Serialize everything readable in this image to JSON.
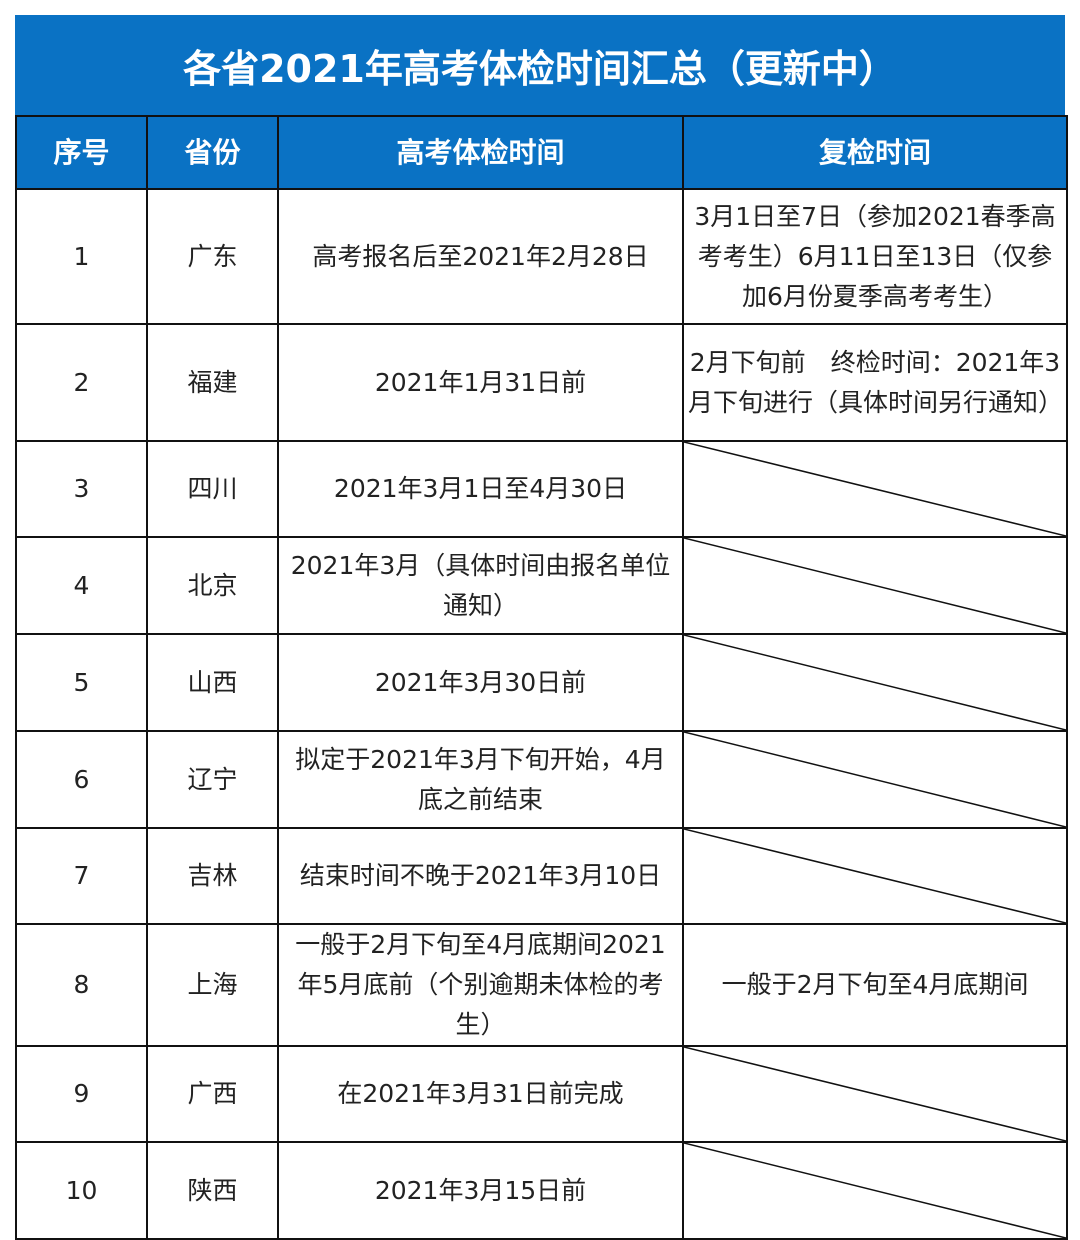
{
  "title": "各省2021年高考体检时间汇总（更新中）",
  "colors": {
    "header_bg": "#0a72c4",
    "header_text": "#ffffff",
    "border": "#111111"
  },
  "columns": [
    "序号",
    "省份",
    "高考体检时间",
    "复检时间"
  ],
  "rows": [
    {
      "no": "1",
      "province": "广东",
      "exam_time": "高考报名后至2021年2月28日",
      "recheck_time": "3月1日至7日（参加2021春季高考考生）6月11日至13日（仅参加6月份夏季高考考生）"
    },
    {
      "no": "2",
      "province": "福建",
      "exam_time": "2021年1月31日前",
      "recheck_time": "2月下旬前　终检时间：2021年3月下旬进行（具体时间另行通知）"
    },
    {
      "no": "3",
      "province": "四川",
      "exam_time": "2021年3月1日至4月30日",
      "recheck_time": null
    },
    {
      "no": "4",
      "province": "北京",
      "exam_time": "2021年3月（具体时间由报名单位通知）",
      "recheck_time": null
    },
    {
      "no": "5",
      "province": "山西",
      "exam_time": "2021年3月30日前",
      "recheck_time": null
    },
    {
      "no": "6",
      "province": "辽宁",
      "exam_time": "拟定于2021年3月下旬开始，4月底之前结束",
      "recheck_time": null
    },
    {
      "no": "7",
      "province": "吉林",
      "exam_time": "结束时间不晚于2021年3月10日",
      "recheck_time": null
    },
    {
      "no": "8",
      "province": "上海",
      "exam_time": "一般于2月下旬至4月底期间2021年5月底前（个别逾期未体检的考生）",
      "recheck_time": "一般于2月下旬至4月底期间"
    },
    {
      "no": "9",
      "province": "广西",
      "exam_time": "在2021年3月31日前完成",
      "recheck_time": null
    },
    {
      "no": "10",
      "province": "陕西",
      "exam_time": "2021年3月15日前",
      "recheck_time": null
    }
  ]
}
